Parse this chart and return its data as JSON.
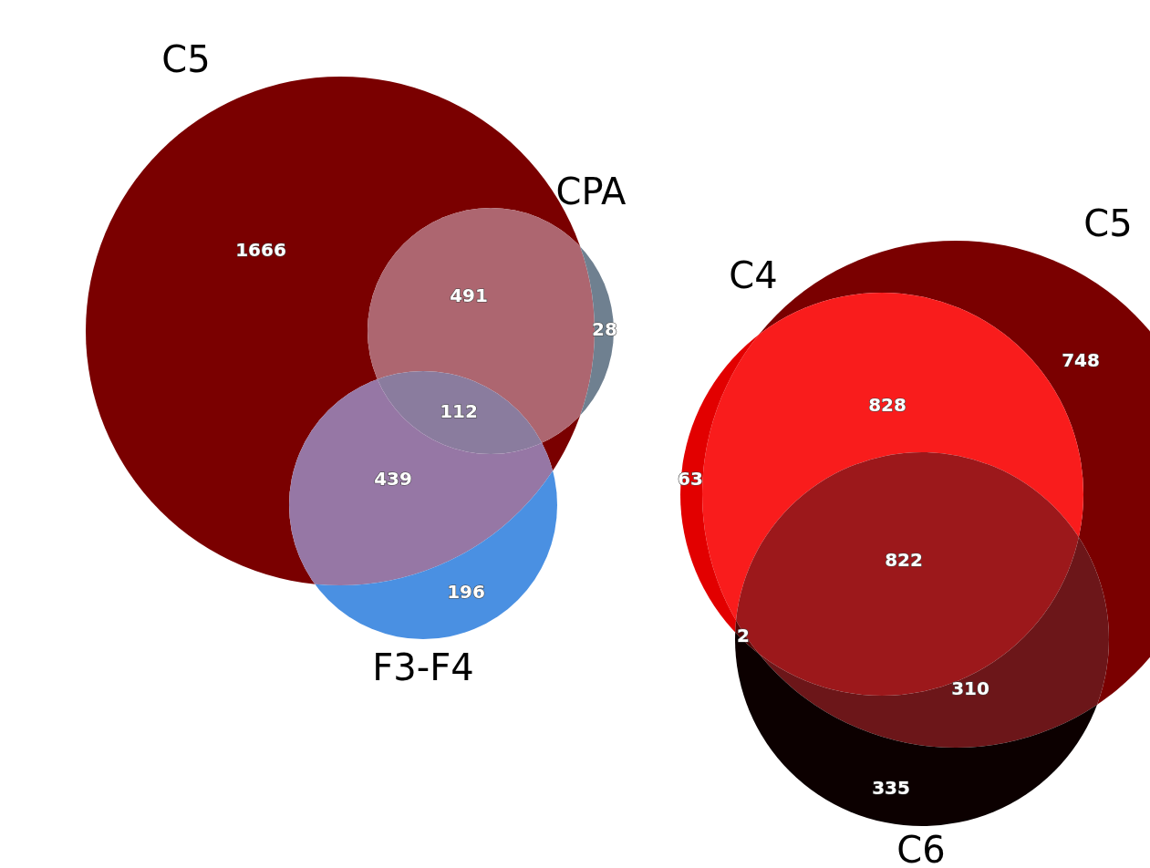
{
  "chart_data": [
    {
      "type": "other",
      "annotations": [
        "C5",
        "CPA",
        "F3-F4"
      ],
      "categories": [
        null,
        null,
        null,
        null,
        null,
        null
      ],
      "values": [
        1666,
        491,
        28,
        112,
        439,
        196
      ],
      "colors": [
        "#7a0000",
        "#ad6670",
        "#6f8090",
        "#8a7c9e",
        "#9677a5",
        "#4a90e2"
      ],
      "data_labels": true
    },
    {
      "type": "other",
      "annotations": [
        "C5",
        "C4",
        "C6"
      ],
      "categories": [
        null,
        null,
        null,
        null,
        null,
        null,
        null
      ],
      "values": [
        748,
        828,
        63,
        822,
        2,
        310,
        335
      ],
      "colors": [
        "#7a0000",
        "#f91c1c",
        "#e20000",
        "#9c181b",
        "#5a0505",
        "#6c1619",
        "#0c0000"
      ],
      "data_labels": true
    }
  ]
}
